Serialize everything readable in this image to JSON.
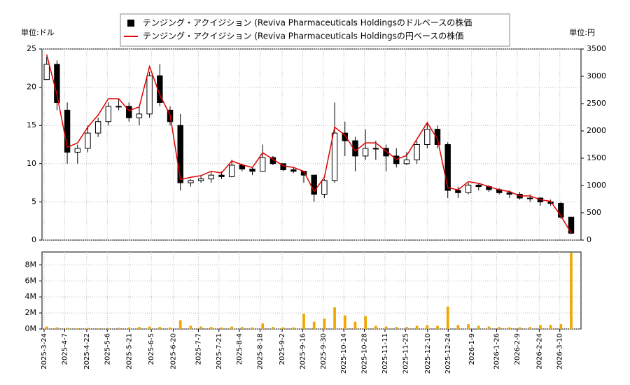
{
  "chart_data": {
    "type": "candlestick",
    "y_unit": "単位:ドル",
    "y2_unit": "単位:円",
    "x": [
      "2025-3-24",
      "2025-3-31",
      "2025-4-7",
      "2025-4-14",
      "2025-4-21",
      "2025-4-28",
      "2025-5-5",
      "2025-5-12",
      "2025-5-19",
      "2025-5-26",
      "2025-6-2",
      "2025-6-9",
      "2025-6-16",
      "2025-6-23",
      "2025-6-30",
      "2025-7-7",
      "2025-7-14",
      "2025-7-21",
      "2025-7-28",
      "2025-8-4",
      "2025-8-11",
      "2025-8-18",
      "2025-8-25",
      "2025-9-1",
      "2025-9-8",
      "2025-9-15",
      "2025-9-22",
      "2025-9-29",
      "2025-10-6",
      "2025-10-13",
      "2025-10-20",
      "2025-10-27",
      "2025-11-3",
      "2025-11-10",
      "2025-11-17",
      "2025-11-24",
      "2025-12-1",
      "2025-12-8",
      "2025-12-15",
      "2025-12-22",
      "2025-12-29",
      "2026-1-5",
      "2026-1-12",
      "2026-1-19",
      "2026-1-26",
      "2026-2-2",
      "2026-2-9",
      "2026-2-16",
      "2026-2-23",
      "2026-3-2",
      "2026-3-9",
      "2026-3-16"
    ],
    "xticks": [
      "2025-3-24",
      "2025-4-7",
      "2025-4-22",
      "2025-5-6",
      "2025-5-21",
      "2025-6-5",
      "2025-6-20",
      "2025-7-7",
      "2025-7-21",
      "2025-8-4",
      "2025-8-18",
      "2025-9-2",
      "2025-9-16",
      "2025-9-30",
      "2025-10-14",
      "2025-10-28",
      "2025-11-11",
      "2025-11-25",
      "2025-12-10",
      "2025-12-24",
      "2026-1-9",
      "2026-1-26",
      "2026-2-9",
      "2026-2-24",
      "2026-3-10"
    ],
    "ylim": [
      0,
      25
    ],
    "yticks": [
      0,
      5,
      10,
      15,
      20,
      25
    ],
    "y2lim": [
      0,
      3500
    ],
    "y2ticks": [
      0,
      500,
      1000,
      1500,
      2000,
      2500,
      3000,
      3500
    ],
    "grid": true,
    "series": [
      {
        "type": "candlestick",
        "name": "テンジング・アクイジション (Reviva Pharmaceuticals Holdingsのドルベースの株価",
        "color": "#000000",
        "open": [
          21,
          23,
          17,
          11.5,
          12,
          14,
          15.5,
          17.5,
          17.5,
          16,
          16.5,
          21.5,
          17,
          15,
          7.5,
          7.8,
          8,
          8.5,
          8.3,
          9.8,
          9.3,
          9,
          10.8,
          10,
          9.2,
          9,
          8.5,
          6,
          7.8,
          14,
          13,
          11,
          12,
          12,
          11,
          10,
          10.5,
          12.5,
          14.5,
          12.5,
          6.5,
          6.2,
          7.2,
          7,
          6.6,
          6.2,
          6,
          5.5,
          5.5,
          5,
          4.8,
          3
        ],
        "high": [
          24,
          23.5,
          18,
          12.5,
          15,
          16,
          18,
          18.5,
          18,
          17.5,
          22,
          23,
          17.5,
          16.5,
          8,
          8.5,
          9,
          9,
          10.5,
          10,
          9.5,
          12.5,
          11,
          10,
          9.5,
          9,
          8.5,
          8,
          18,
          15.5,
          13.5,
          14.5,
          13,
          12.5,
          12,
          11.5,
          13,
          15.5,
          15,
          12.8,
          7,
          7.5,
          7.5,
          7.2,
          6.8,
          6.5,
          6.3,
          6,
          5.6,
          5.3,
          5,
          3
        ],
        "low": [
          21,
          17,
          10,
          10,
          11.5,
          13.5,
          15,
          17,
          15.5,
          15,
          16,
          17.5,
          15,
          6.5,
          7,
          7.5,
          7.5,
          8,
          8.2,
          9,
          8.5,
          9,
          9.8,
          9,
          8.8,
          7.5,
          5,
          5.5,
          7.5,
          11,
          9,
          10.5,
          10.5,
          9,
          9.5,
          9.8,
          10,
          12,
          12,
          5.5,
          5.5,
          6,
          6.5,
          6.3,
          6,
          5.5,
          5.3,
          5,
          4.5,
          4.5,
          2.8,
          0.8
        ],
        "close": [
          23,
          18,
          11.5,
          12,
          14,
          15.5,
          17.5,
          17.5,
          16,
          16.5,
          21.5,
          18,
          15.5,
          7.5,
          7.8,
          8,
          8.5,
          8.3,
          9.8,
          9.3,
          9,
          10.8,
          10,
          9.2,
          9,
          8.5,
          6,
          7.8,
          14,
          13,
          11,
          12,
          12,
          11,
          10,
          10.5,
          12.5,
          14.5,
          12.5,
          6.5,
          6.2,
          7.2,
          7,
          6.6,
          6.2,
          6,
          5.5,
          5.5,
          5,
          4.8,
          3,
          0.9
        ]
      },
      {
        "type": "line",
        "axis": "y2",
        "name": "テンジング・アクイジション (Reviva Pharmaceuticals Holdingsの円ベースの株価",
        "color": "#e00000",
        "values": [
          3400,
          2660,
          1700,
          1780,
          2070,
          2290,
          2590,
          2590,
          2370,
          2440,
          3180,
          2660,
          2290,
          1110,
          1150,
          1180,
          1260,
          1230,
          1450,
          1380,
          1330,
          1600,
          1480,
          1360,
          1330,
          1260,
          890,
          1150,
          2070,
          1920,
          1630,
          1780,
          1780,
          1630,
          1480,
          1550,
          1850,
          2150,
          1850,
          960,
          920,
          1070,
          1040,
          980,
          920,
          890,
          810,
          810,
          740,
          710,
          440,
          130
        ]
      }
    ],
    "volume": {
      "color": "#f0a800",
      "ylim": [
        0,
        9600000
      ],
      "yticks": [
        {
          "value": 0,
          "label": "0M"
        },
        {
          "value": 2000000,
          "label": "2M"
        },
        {
          "value": 4000000,
          "label": "4M"
        },
        {
          "value": 6000000,
          "label": "6M"
        },
        {
          "value": 8000000,
          "label": "8M"
        }
      ],
      "values": [
        300000,
        200000,
        150000,
        100000,
        150000,
        100000,
        120000,
        150000,
        200000,
        250000,
        300000,
        250000,
        200000,
        1100000,
        400000,
        300000,
        250000,
        200000,
        300000,
        250000,
        200000,
        700000,
        250000,
        200000,
        200000,
        1900000,
        900000,
        1300000,
        2700000,
        1700000,
        900000,
        1600000,
        400000,
        300000,
        250000,
        250000,
        400000,
        500000,
        400000,
        2800000,
        500000,
        600000,
        400000,
        300000,
        250000,
        200000,
        200000,
        250000,
        500000,
        500000,
        600000,
        9500000
      ]
    }
  }
}
